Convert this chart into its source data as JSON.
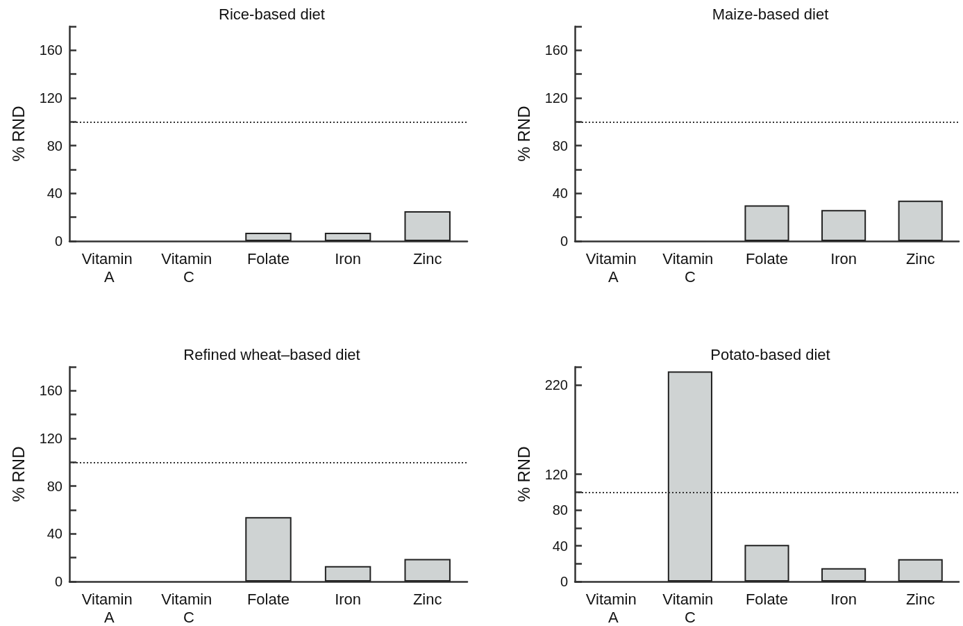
{
  "chart_data": [
    {
      "type": "bar",
      "title": "Rice-based diet",
      "ylabel": "% RND",
      "categories": [
        "Vitamin A",
        "Vitamin C",
        "Folate",
        "Iron",
        "Zinc"
      ],
      "values": [
        0,
        0,
        7,
        7,
        25
      ],
      "color": "#cfd3d3",
      "ylim": [
        0,
        180
      ],
      "yticks": [
        0,
        {
          "value": 20,
          "label": null
        },
        40,
        {
          "value": 60,
          "label": null
        },
        80,
        {
          "value": 100,
          "label": null
        },
        120,
        {
          "value": 140,
          "label": null
        },
        160,
        {
          "value": 180,
          "label": null
        }
      ],
      "ref_lines": [
        {
          "axis": "y",
          "value": 100,
          "line_style": "dotted",
          "color": "#333333"
        }
      ]
    },
    {
      "type": "bar",
      "title": "Maize-based diet",
      "ylabel": "% RND",
      "categories": [
        "Vitamin A",
        "Vitamin C",
        "Folate",
        "Iron",
        "Zinc"
      ],
      "values": [
        0,
        0,
        30,
        26,
        34
      ],
      "color": "#cfd3d3",
      "ylim": [
        0,
        180
      ],
      "yticks": [
        0,
        {
          "value": 20,
          "label": null
        },
        40,
        {
          "value": 60,
          "label": null
        },
        80,
        {
          "value": 100,
          "label": null
        },
        120,
        {
          "value": 140,
          "label": null
        },
        160,
        {
          "value": 180,
          "label": null
        }
      ],
      "ref_lines": [
        {
          "axis": "y",
          "value": 100,
          "line_style": "dotted",
          "color": "#333333"
        }
      ]
    },
    {
      "type": "bar",
      "title": "Refined wheat–based diet",
      "ylabel": "% RND",
      "categories": [
        "Vitamin A",
        "Vitamin C",
        "Folate",
        "Iron",
        "Zinc"
      ],
      "values": [
        0,
        0,
        54,
        13,
        19
      ],
      "color": "#cfd3d3",
      "ylim": [
        0,
        180
      ],
      "yticks": [
        0,
        {
          "value": 20,
          "label": null
        },
        40,
        {
          "value": 60,
          "label": null
        },
        80,
        {
          "value": 100,
          "label": null
        },
        120,
        {
          "value": 140,
          "label": null
        },
        160,
        {
          "value": 180,
          "label": null
        }
      ],
      "ref_lines": [
        {
          "axis": "y",
          "value": 100,
          "line_style": "dotted",
          "color": "#333333"
        }
      ]
    },
    {
      "type": "bar",
      "title": "Potato-based diet",
      "ylabel": "% RND",
      "categories": [
        "Vitamin A",
        "Vitamin C",
        "Folate",
        "Iron",
        "Zinc"
      ],
      "values": [
        0,
        235,
        41,
        15,
        25
      ],
      "color": "#cfd3d3",
      "ylim": [
        0,
        240
      ],
      "yticks": [
        0,
        {
          "value": 20,
          "label": null
        },
        40,
        {
          "value": 60,
          "label": null
        },
        80,
        {
          "value": 100,
          "label": null
        },
        120,
        220,
        {
          "value": 240,
          "label": null
        }
      ],
      "ref_lines": [
        {
          "axis": "y",
          "value": 100,
          "line_style": "dotted",
          "color": "#333333"
        }
      ]
    }
  ]
}
